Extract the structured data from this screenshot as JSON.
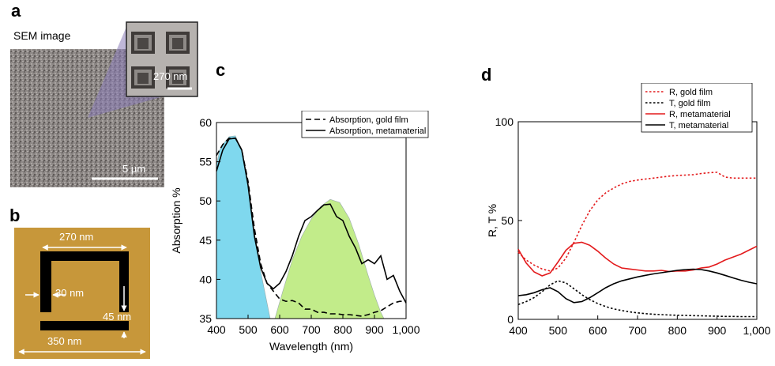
{
  "panels": {
    "a": {
      "letter": "a",
      "caption": "SEM image",
      "inset_scale": "270 nm",
      "main_scale": "5 µm"
    },
    "b": {
      "letter": "b",
      "dim_top": "270 nm",
      "dim_left": "30 nm",
      "dim_right": "45 nm",
      "dim_bottom": "350 nm"
    },
    "c": {
      "letter": "c"
    },
    "d": {
      "letter": "d"
    }
  },
  "colors": {
    "gold": "#c7973a",
    "cyan": "#7fd8ee",
    "green": "#c2ec8a",
    "red": "#e31a1c",
    "black": "#000000",
    "sem": "#8a8582",
    "inset_highlight": "#8a7bb8"
  },
  "chart_data": [
    {
      "type": "line",
      "panel": "c",
      "xlabel": "Wavelength (nm)",
      "ylabel": "Absorption %",
      "xlim": [
        400,
        1000
      ],
      "ylim": [
        35,
        60
      ],
      "xticks": [
        "400",
        "500",
        "600",
        "700",
        "800",
        "900",
        "1,000"
      ],
      "yticks": [
        "35",
        "40",
        "45",
        "50",
        "55",
        "60"
      ],
      "legend": "top-right",
      "series": [
        {
          "name": "Absorption, gold film",
          "style": "dashed",
          "color": "#000000",
          "x": [
            400,
            420,
            440,
            460,
            480,
            500,
            520,
            540,
            560,
            580,
            600,
            620,
            640,
            660,
            680,
            700,
            720,
            740,
            760,
            780,
            800,
            820,
            840,
            860,
            880,
            900,
            920,
            940,
            960,
            980,
            1000
          ],
          "y": [
            55.8,
            57.2,
            58.0,
            58.0,
            56.5,
            52.5,
            46.5,
            42.0,
            39.5,
            38.5,
            37.5,
            37.2,
            37.3,
            37.0,
            36.2,
            36.2,
            35.8,
            35.8,
            35.6,
            35.6,
            35.5,
            35.5,
            35.4,
            35.3,
            35.5,
            35.8,
            36.0,
            36.5,
            37.0,
            37.2,
            37.2
          ]
        },
        {
          "name": "Absorption, metamaterial",
          "style": "solid",
          "color": "#000000",
          "x": [
            400,
            420,
            440,
            460,
            480,
            500,
            520,
            540,
            560,
            580,
            600,
            620,
            640,
            660,
            680,
            700,
            720,
            740,
            760,
            780,
            800,
            820,
            840,
            860,
            880,
            900,
            920,
            940,
            960,
            980,
            1000
          ],
          "y": [
            53.8,
            56.5,
            57.9,
            58.0,
            56.5,
            52.0,
            45.5,
            41.5,
            39.5,
            38.8,
            39.5,
            41.0,
            43.0,
            45.5,
            47.5,
            48.0,
            48.8,
            49.5,
            49.6,
            48.0,
            47.5,
            45.5,
            44.0,
            42.0,
            42.5,
            42.0,
            43.0,
            40.0,
            40.5,
            38.5,
            37.0
          ]
        }
      ],
      "bands": [
        {
          "shape": "left",
          "color": "cyan",
          "x": [
            400,
            410,
            420,
            440,
            460,
            480,
            500,
            520,
            540,
            560,
            570
          ],
          "y": [
            54.5,
            56.5,
            57.2,
            58.2,
            58.3,
            56.5,
            52.0,
            46.0,
            41.0,
            37.0,
            35.0
          ]
        },
        {
          "shape": "arc",
          "color": "green",
          "x": [
            585,
            610,
            640,
            670,
            700,
            730,
            760,
            790,
            820,
            850,
            880,
            900,
            920,
            930
          ],
          "y": [
            35.0,
            38.5,
            42.5,
            45.5,
            47.7,
            49.3,
            50.2,
            49.8,
            47.8,
            44.5,
            40.5,
            38.0,
            35.8,
            35.0
          ]
        }
      ]
    },
    {
      "type": "line",
      "panel": "d",
      "xlabel": "",
      "ylabel": "R, T %",
      "xlim": [
        400,
        1000
      ],
      "ylim": [
        0,
        100
      ],
      "xticks": [
        "400",
        "500",
        "600",
        "700",
        "800",
        "900",
        "1,000"
      ],
      "yticks": [
        "0",
        "50",
        "100"
      ],
      "legend": "top-right",
      "series": [
        {
          "name": "R, gold film",
          "style": "dotted",
          "color": "#e31a1c",
          "x": [
            400,
            420,
            440,
            460,
            480,
            500,
            520,
            540,
            560,
            580,
            600,
            620,
            640,
            660,
            680,
            700,
            720,
            740,
            760,
            780,
            800,
            820,
            840,
            860,
            880,
            900,
            920,
            940,
            960,
            980,
            1000
          ],
          "y": [
            34.0,
            30.0,
            27.5,
            25.5,
            24.5,
            26.0,
            31.0,
            39.0,
            47.5,
            55.0,
            60.5,
            64.0,
            66.5,
            68.5,
            69.8,
            70.5,
            71.0,
            71.5,
            72.0,
            72.5,
            72.8,
            73.0,
            73.2,
            73.8,
            74.2,
            74.4,
            72.0,
            71.5,
            71.5,
            71.5,
            71.5
          ]
        },
        {
          "name": "T, gold film",
          "style": "dotted",
          "color": "#000000",
          "x": [
            400,
            420,
            440,
            460,
            480,
            500,
            520,
            540,
            560,
            580,
            600,
            620,
            640,
            660,
            680,
            700,
            720,
            740,
            760,
            780,
            800,
            820,
            840,
            860,
            880,
            900,
            920,
            940,
            960,
            980,
            1000
          ],
          "y": [
            7.5,
            9.0,
            11.0,
            14.0,
            17.5,
            19.5,
            18.5,
            15.5,
            12.5,
            10.0,
            8.0,
            6.5,
            5.3,
            4.5,
            3.8,
            3.3,
            2.9,
            2.6,
            2.4,
            2.2,
            2.1,
            2.0,
            1.9,
            1.8,
            1.7,
            1.6,
            1.5,
            1.5,
            1.4,
            1.4,
            1.4
          ]
        },
        {
          "name": "R, metamaterial",
          "style": "solid",
          "color": "#e31a1c",
          "x": [
            400,
            420,
            440,
            460,
            480,
            500,
            520,
            540,
            560,
            580,
            600,
            620,
            640,
            660,
            680,
            700,
            720,
            740,
            760,
            780,
            800,
            820,
            840,
            860,
            880,
            900,
            920,
            940,
            960,
            980,
            1000
          ],
          "y": [
            35.5,
            28.5,
            24.0,
            22.0,
            23.5,
            29.0,
            35.0,
            38.5,
            39.0,
            37.5,
            34.5,
            31.0,
            28.0,
            26.0,
            25.5,
            25.0,
            24.5,
            24.5,
            24.8,
            24.2,
            24.5,
            24.5,
            25.0,
            26.0,
            26.5,
            28.0,
            30.0,
            31.5,
            33.0,
            35.0,
            37.0
          ]
        },
        {
          "name": "T, metamaterial",
          "style": "solid",
          "color": "#000000",
          "x": [
            400,
            420,
            440,
            460,
            480,
            500,
            520,
            540,
            560,
            580,
            600,
            620,
            640,
            660,
            680,
            700,
            720,
            740,
            760,
            780,
            800,
            820,
            840,
            860,
            880,
            900,
            920,
            940,
            960,
            980,
            1000
          ],
          "y": [
            12.0,
            12.5,
            13.5,
            15.0,
            16.0,
            14.0,
            10.5,
            8.5,
            9.0,
            11.0,
            13.5,
            16.0,
            18.0,
            19.5,
            20.5,
            21.5,
            22.3,
            23.0,
            23.6,
            24.2,
            24.8,
            25.2,
            25.4,
            25.2,
            24.5,
            23.5,
            22.3,
            21.0,
            19.8,
            18.8,
            18.0
          ]
        }
      ]
    }
  ]
}
